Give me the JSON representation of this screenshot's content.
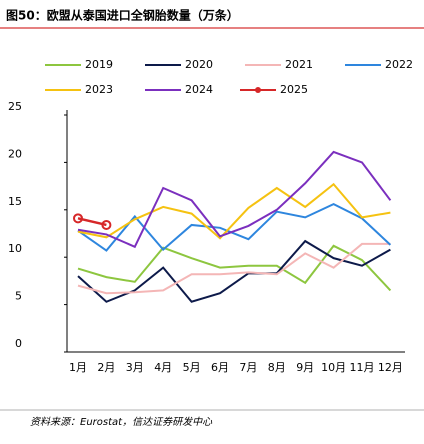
{
  "chart_data": {
    "type": "line",
    "title": "图50：欧盟从泰国进口全钢胎数量（万条）",
    "source": "资料来源：Eurostat，信达证券研发中心",
    "categories": [
      "1月",
      "2月",
      "3月",
      "4月",
      "5月",
      "6月",
      "7月",
      "8月",
      "9月",
      "10月",
      "11月",
      "12月"
    ],
    "ylim": [
      0,
      25
    ],
    "yticks": [
      0,
      5,
      10,
      15,
      20,
      25
    ],
    "series": [
      {
        "name": "2019",
        "color": "#8dc63f",
        "values": [
          8.8,
          7.9,
          7.4,
          11.0,
          9.9,
          8.9,
          9.1,
          9.1,
          7.3,
          11.2,
          9.7,
          6.5
        ]
      },
      {
        "name": "2020",
        "color": "#0d1a4a",
        "values": [
          8.0,
          5.3,
          6.5,
          8.9,
          5.3,
          6.2,
          8.3,
          8.3,
          11.7,
          9.9,
          9.1,
          10.8
        ]
      },
      {
        "name": "2021",
        "color": "#f4b6b6",
        "values": [
          7.0,
          6.2,
          6.3,
          6.5,
          8.2,
          8.2,
          8.4,
          8.2,
          10.4,
          8.9,
          11.4,
          11.4
        ]
      },
      {
        "name": "2022",
        "color": "#2e86de",
        "values": [
          12.8,
          10.7,
          14.3,
          10.8,
          13.4,
          13.1,
          11.9,
          14.8,
          14.2,
          15.6,
          14.1,
          11.3
        ]
      },
      {
        "name": "2023",
        "color": "#f5c211",
        "values": [
          12.7,
          12.1,
          14.0,
          15.3,
          14.6,
          12.0,
          15.2,
          17.3,
          15.3,
          17.7,
          14.2,
          14.7
        ]
      },
      {
        "name": "2024",
        "color": "#7b2fbe",
        "values": [
          12.9,
          12.4,
          11.1,
          17.3,
          16.0,
          12.2,
          13.3,
          15.0,
          17.8,
          21.1,
          20.0,
          16.0
        ]
      },
      {
        "name": "2025",
        "color": "#d62728",
        "marker": true,
        "values": [
          14.1,
          13.4,
          null,
          null,
          null,
          null,
          null,
          null,
          null,
          null,
          null,
          null
        ]
      }
    ]
  }
}
